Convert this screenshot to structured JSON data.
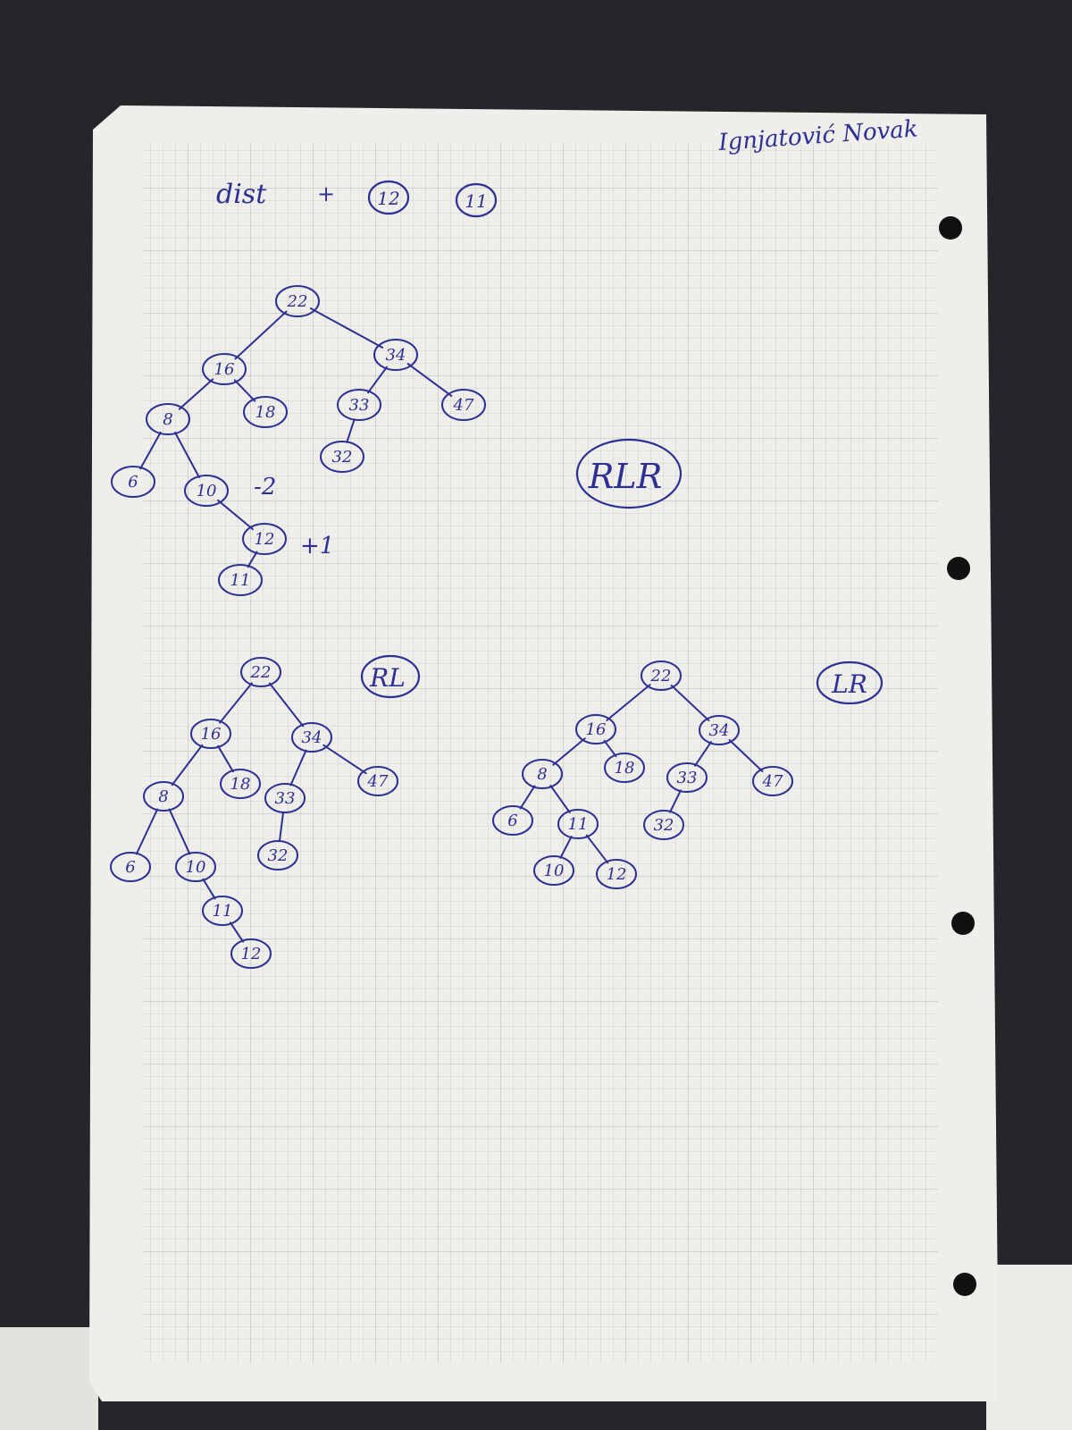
{
  "header": {
    "signature": "Ignjatović Novak",
    "heading": "dist",
    "plus": "+",
    "insert_keys": [
      "12",
      "11"
    ]
  },
  "labels": {
    "rlr": "RLR",
    "rl": "RL",
    "lr": "LR",
    "balance_neg": "-2",
    "balance_pos": "+1"
  },
  "trees": [
    {
      "name": "tree-after-insert",
      "nodes": [
        {
          "id": "n22",
          "key": "22"
        },
        {
          "id": "n16",
          "key": "16"
        },
        {
          "id": "n34",
          "key": "34"
        },
        {
          "id": "n8",
          "key": "8"
        },
        {
          "id": "n18",
          "key": "18"
        },
        {
          "id": "n33",
          "key": "33"
        },
        {
          "id": "n47",
          "key": "47"
        },
        {
          "id": "n6",
          "key": "6"
        },
        {
          "id": "n10",
          "key": "10"
        },
        {
          "id": "n32",
          "key": "32"
        },
        {
          "id": "n12",
          "key": "12"
        },
        {
          "id": "n11",
          "key": "11"
        }
      ],
      "edges": [
        [
          "n22",
          "n16"
        ],
        [
          "n22",
          "n34"
        ],
        [
          "n16",
          "n8"
        ],
        [
          "n16",
          "n18"
        ],
        [
          "n34",
          "n33"
        ],
        [
          "n34",
          "n47"
        ],
        [
          "n8",
          "n6"
        ],
        [
          "n8",
          "n10"
        ],
        [
          "n33",
          "n32"
        ],
        [
          "n10",
          "n12"
        ],
        [
          "n12",
          "n11"
        ]
      ]
    },
    {
      "name": "tree-after-rl-step",
      "nodes": [
        {
          "id": "n22",
          "key": "22"
        },
        {
          "id": "n16",
          "key": "16"
        },
        {
          "id": "n34",
          "key": "34"
        },
        {
          "id": "n8",
          "key": "8"
        },
        {
          "id": "n18",
          "key": "18"
        },
        {
          "id": "n33",
          "key": "33"
        },
        {
          "id": "n47",
          "key": "47"
        },
        {
          "id": "n6",
          "key": "6"
        },
        {
          "id": "n10",
          "key": "10"
        },
        {
          "id": "n32",
          "key": "32"
        },
        {
          "id": "n11",
          "key": "11"
        },
        {
          "id": "n12",
          "key": "12"
        }
      ],
      "edges": [
        [
          "n22",
          "n16"
        ],
        [
          "n22",
          "n34"
        ],
        [
          "n16",
          "n8"
        ],
        [
          "n16",
          "n18"
        ],
        [
          "n34",
          "n33"
        ],
        [
          "n34",
          "n47"
        ],
        [
          "n8",
          "n6"
        ],
        [
          "n8",
          "n10"
        ],
        [
          "n33",
          "n32"
        ],
        [
          "n10",
          "n11"
        ],
        [
          "n11",
          "n12"
        ]
      ]
    },
    {
      "name": "tree-balanced",
      "nodes": [
        {
          "id": "n22",
          "key": "22"
        },
        {
          "id": "n16",
          "key": "16"
        },
        {
          "id": "n34",
          "key": "34"
        },
        {
          "id": "n8",
          "key": "8"
        },
        {
          "id": "n18",
          "key": "18"
        },
        {
          "id": "n33",
          "key": "33"
        },
        {
          "id": "n47",
          "key": "47"
        },
        {
          "id": "n6",
          "key": "6"
        },
        {
          "id": "n11",
          "key": "11"
        },
        {
          "id": "n32",
          "key": "32"
        },
        {
          "id": "n10",
          "key": "10"
        },
        {
          "id": "n12",
          "key": "12"
        }
      ],
      "edges": [
        [
          "n22",
          "n16"
        ],
        [
          "n22",
          "n34"
        ],
        [
          "n16",
          "n8"
        ],
        [
          "n16",
          "n18"
        ],
        [
          "n34",
          "n33"
        ],
        [
          "n34",
          "n47"
        ],
        [
          "n8",
          "n6"
        ],
        [
          "n8",
          "n11"
        ],
        [
          "n33",
          "n32"
        ],
        [
          "n11",
          "n10"
        ],
        [
          "n11",
          "n12"
        ]
      ]
    }
  ]
}
